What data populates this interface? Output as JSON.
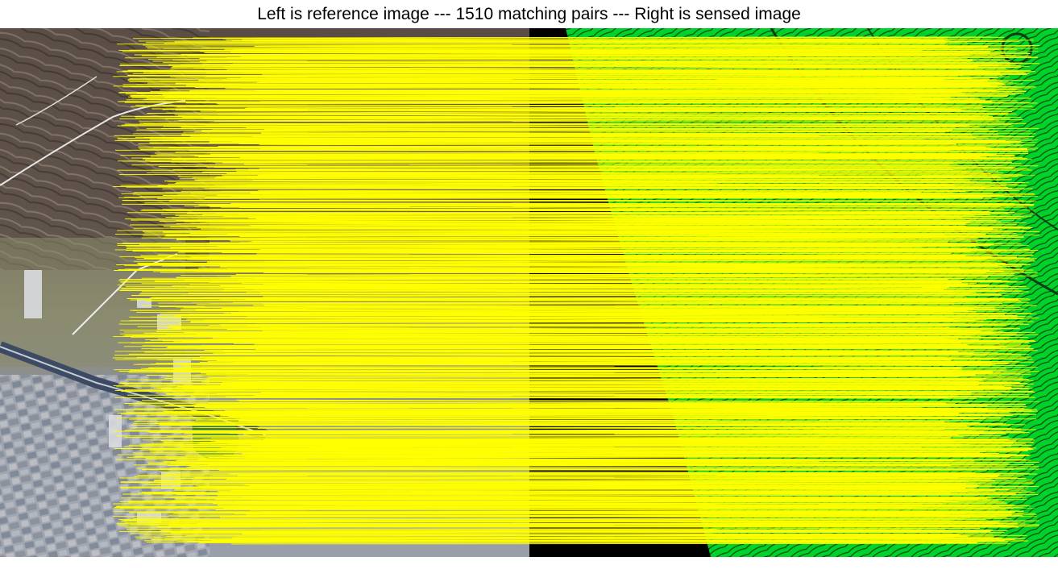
{
  "title": "Left is reference image --- 1510 matching pairs --- Right is sensed image",
  "reference_image": {
    "name": "reference image",
    "content": "optical satellite image of hills, terraced fields, village and highway"
  },
  "sensed_image": {
    "name": "sensed image",
    "content": "green-tinted map / elevation rendering of the same area"
  },
  "matches": {
    "count": 1510,
    "line_color": "#ffff00"
  },
  "colors": {
    "background": "#ffffff",
    "match_line": "#ffff00",
    "sensed_green": "#00d22a",
    "sensed_dark": "#0a3a0a",
    "reference_dark": "#4a4038",
    "reference_light": "#c9c2b4",
    "highway": "#3c4b63",
    "water": "#2f6e5a"
  }
}
